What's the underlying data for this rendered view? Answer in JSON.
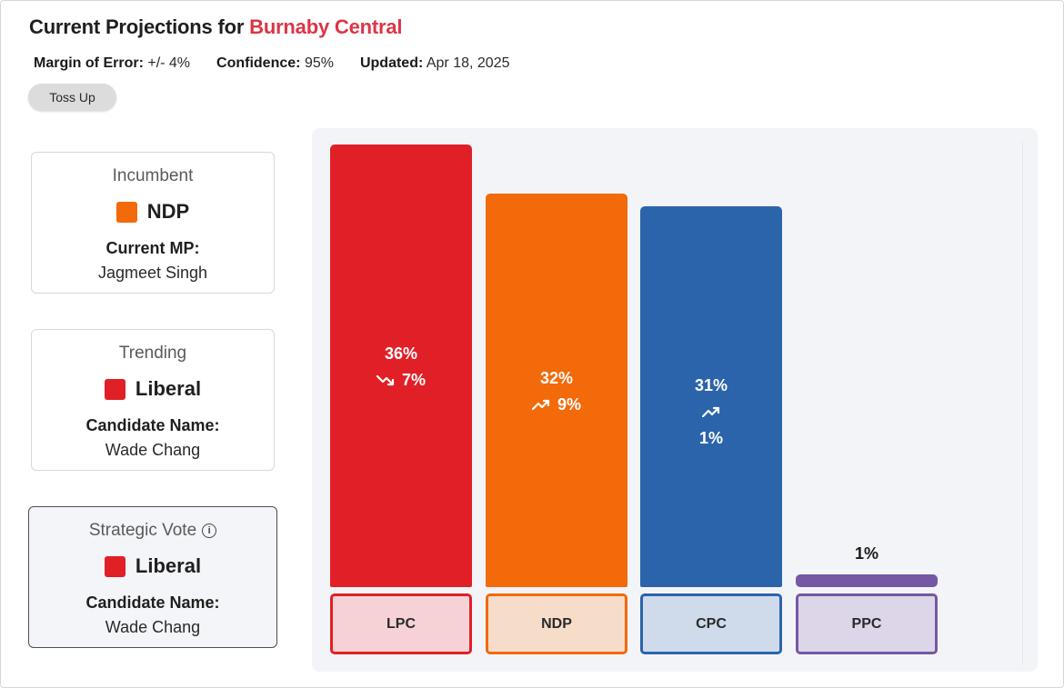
{
  "header": {
    "title_prefix": "Current Projections for",
    "district": "Burnaby Central",
    "margin_label": "Margin of Error:",
    "margin_value": "+/- 4%",
    "confidence_label": "Confidence:",
    "confidence_value": "95%",
    "updated_label": "Updated:",
    "updated_value": "Apr 18, 2025",
    "status_pill": "Toss Up"
  },
  "cards": {
    "incumbent": {
      "heading": "Incumbent",
      "party": "NDP",
      "party_color": "#f26a0a",
      "sub_label": "Current MP:",
      "name": "Jagmeet Singh"
    },
    "trending": {
      "heading": "Trending",
      "party": "Liberal",
      "party_color": "#e11f26",
      "sub_label": "Candidate Name:",
      "name": "Wade Chang"
    },
    "strategic": {
      "heading": "Strategic Vote",
      "info_icon": "info-icon",
      "party": "Liberal",
      "party_color": "#e11f26",
      "sub_label": "Candidate Name:",
      "name": "Wade Chang"
    }
  },
  "chart_data": {
    "type": "bar",
    "categories": [
      "LPC",
      "NDP",
      "CPC",
      "PPC"
    ],
    "values": [
      36,
      32,
      31,
      1
    ],
    "value_labels": [
      "36%",
      "32%",
      "31%",
      "1%"
    ],
    "trend": [
      {
        "direction": "down",
        "icon": "trend-down-icon",
        "change": "7%"
      },
      {
        "direction": "up",
        "icon": "trend-up-icon",
        "change": "9%"
      },
      {
        "direction": "up",
        "icon": "trend-up-icon",
        "change": "1%"
      },
      null
    ],
    "colors": [
      "#e11f26",
      "#f26a0a",
      "#2b64ab",
      "#7458a3"
    ],
    "chip_fills": [
      "#f6d2d6",
      "#f6ddc9",
      "#cfdaeb",
      "#dcd6e8"
    ],
    "ylim": [
      0,
      36
    ],
    "grid": false,
    "legend": "none",
    "title": "",
    "xlabel": "",
    "ylabel": ""
  }
}
